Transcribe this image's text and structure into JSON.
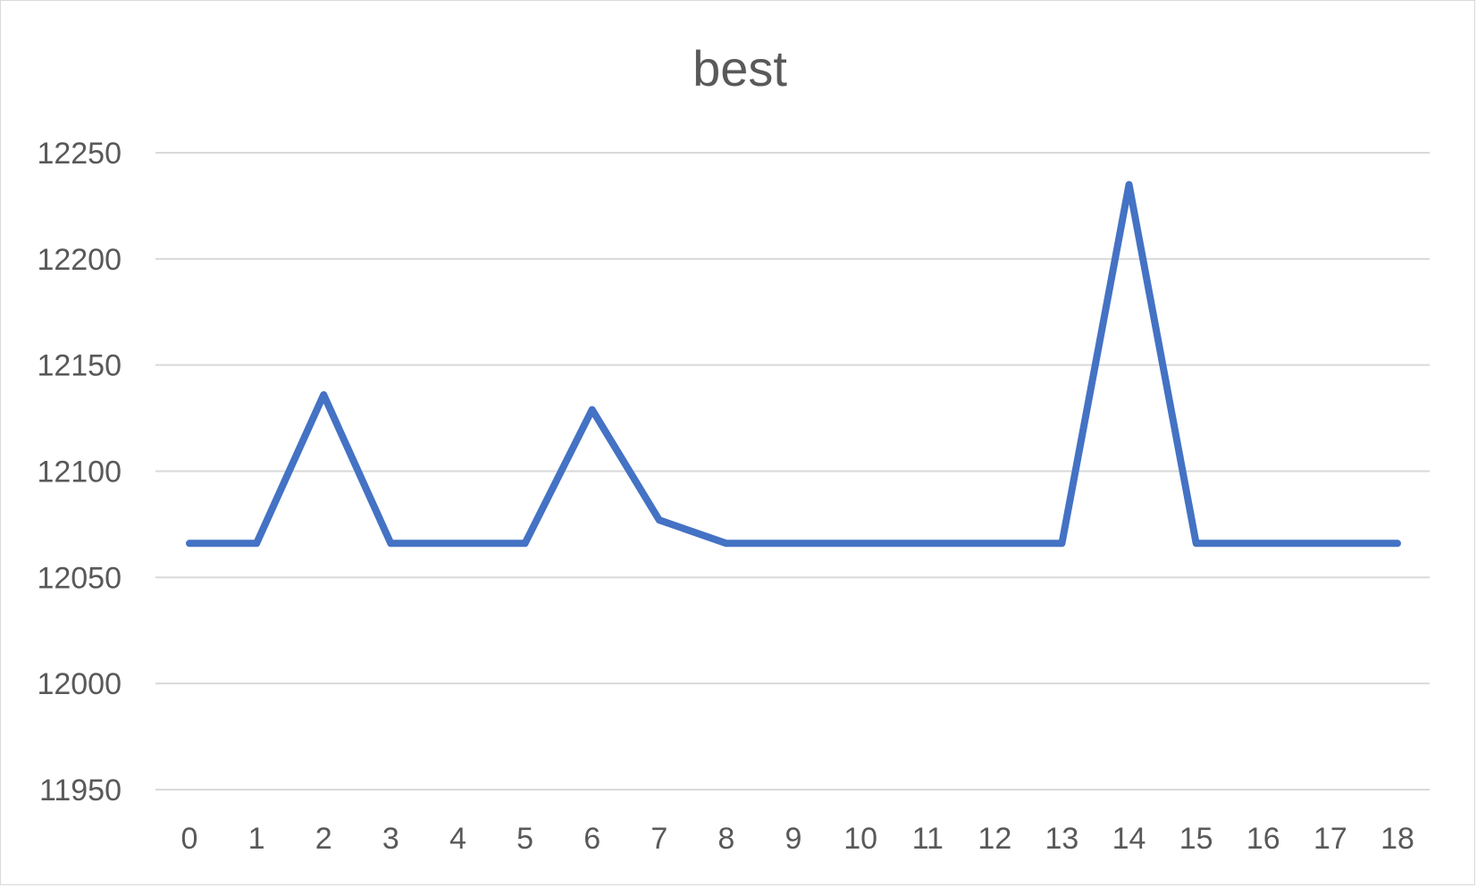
{
  "chart_data": {
    "type": "line",
    "title": "best",
    "xlabel": "",
    "ylabel": "",
    "categories": [
      "0",
      "1",
      "2",
      "3",
      "4",
      "5",
      "6",
      "7",
      "8",
      "9",
      "10",
      "11",
      "12",
      "13",
      "14",
      "15",
      "16",
      "17",
      "18"
    ],
    "series": [
      {
        "name": "best",
        "values": [
          12066,
          12066,
          12136,
          12066,
          12066,
          12066,
          12129,
          12077,
          12066,
          12066,
          12066,
          12066,
          12066,
          12066,
          12235,
          12066,
          12066,
          12066,
          12066
        ],
        "color": "#4472c4"
      }
    ],
    "ylim": [
      11950,
      12250
    ],
    "yticks": [
      "11950",
      "12000",
      "12050",
      "12100",
      "12150",
      "12200",
      "12250"
    ],
    "grid": true,
    "legend": "none"
  }
}
